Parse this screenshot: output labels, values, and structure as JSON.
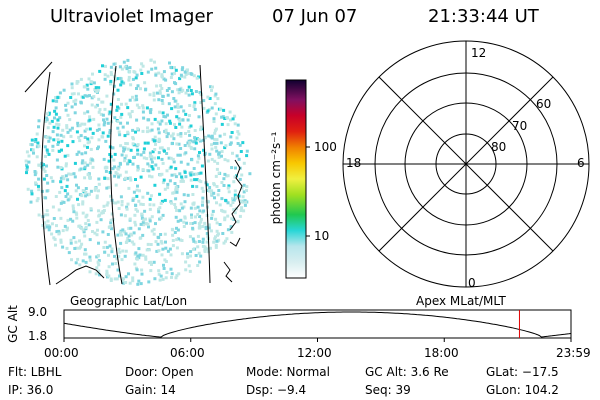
{
  "header": {
    "title": "Ultraviolet Imager",
    "date": "07 Jun 07",
    "time": "21:33:44 UT"
  },
  "colorbar": {
    "unit_label": "photon cm⁻²s⁻¹",
    "ticks": [
      "100",
      "10"
    ]
  },
  "polar": {
    "mlt_labels": {
      "top": "12",
      "left": "18",
      "right": "6",
      "bottom": "0"
    },
    "lat_labels": [
      "60",
      "70",
      "80"
    ]
  },
  "labels": {
    "geographic": "Geographic Lat/Lon",
    "apex": "Apex MLat/MLT"
  },
  "timeline": {
    "axis_label": "GC Alt",
    "y_max": "9.0",
    "y_min": "1.8",
    "x_ticks": [
      "00:00",
      "06:00",
      "12:00",
      "18:00",
      "23:59"
    ],
    "current_marker_hour": 21.56
  },
  "info": {
    "flt": "Flt: LBHL",
    "door": "Door: Open",
    "mode": "Mode: Normal",
    "gc_alt": "GC Alt: 3.6 Re",
    "glat": "GLat: −17.5",
    "ip": "IP: 36.0",
    "gain": "Gain: 14",
    "dsp": "Dsp:   −9.4",
    "seq": "Seq: 39",
    "glon": "GLon: 104.2"
  },
  "colors": {
    "marker": "#e00000",
    "speckle_light": "#bfe8e6",
    "speckle_mid": "#7fd6e0",
    "speckle_strong": "#20d0d8"
  }
}
